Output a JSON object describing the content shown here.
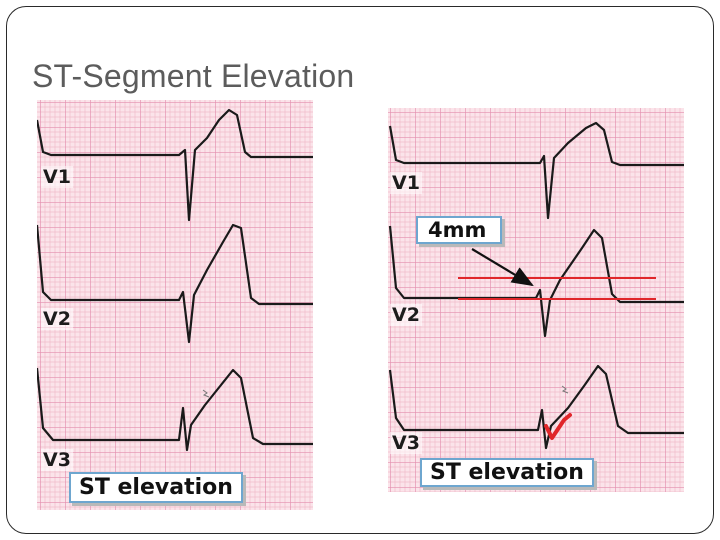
{
  "slide": {
    "title": "ST-Segment Elevation"
  },
  "left_panel": {
    "leads": [
      "V1",
      "V2",
      "V3"
    ],
    "caption": "ST elevation"
  },
  "right_panel": {
    "leads": [
      "V1",
      "V2",
      "V3"
    ],
    "measurement_label": "4mm",
    "caption": "ST elevation"
  },
  "colors": {
    "ecg_grid_minor": "#f3c6d4",
    "ecg_grid_major": "#e48fae",
    "ecg_trace": "#1a1a1a",
    "measurement_line": "#e0262a",
    "callout_border": "#6ea6cf",
    "title_text": "#5c5c5c"
  }
}
